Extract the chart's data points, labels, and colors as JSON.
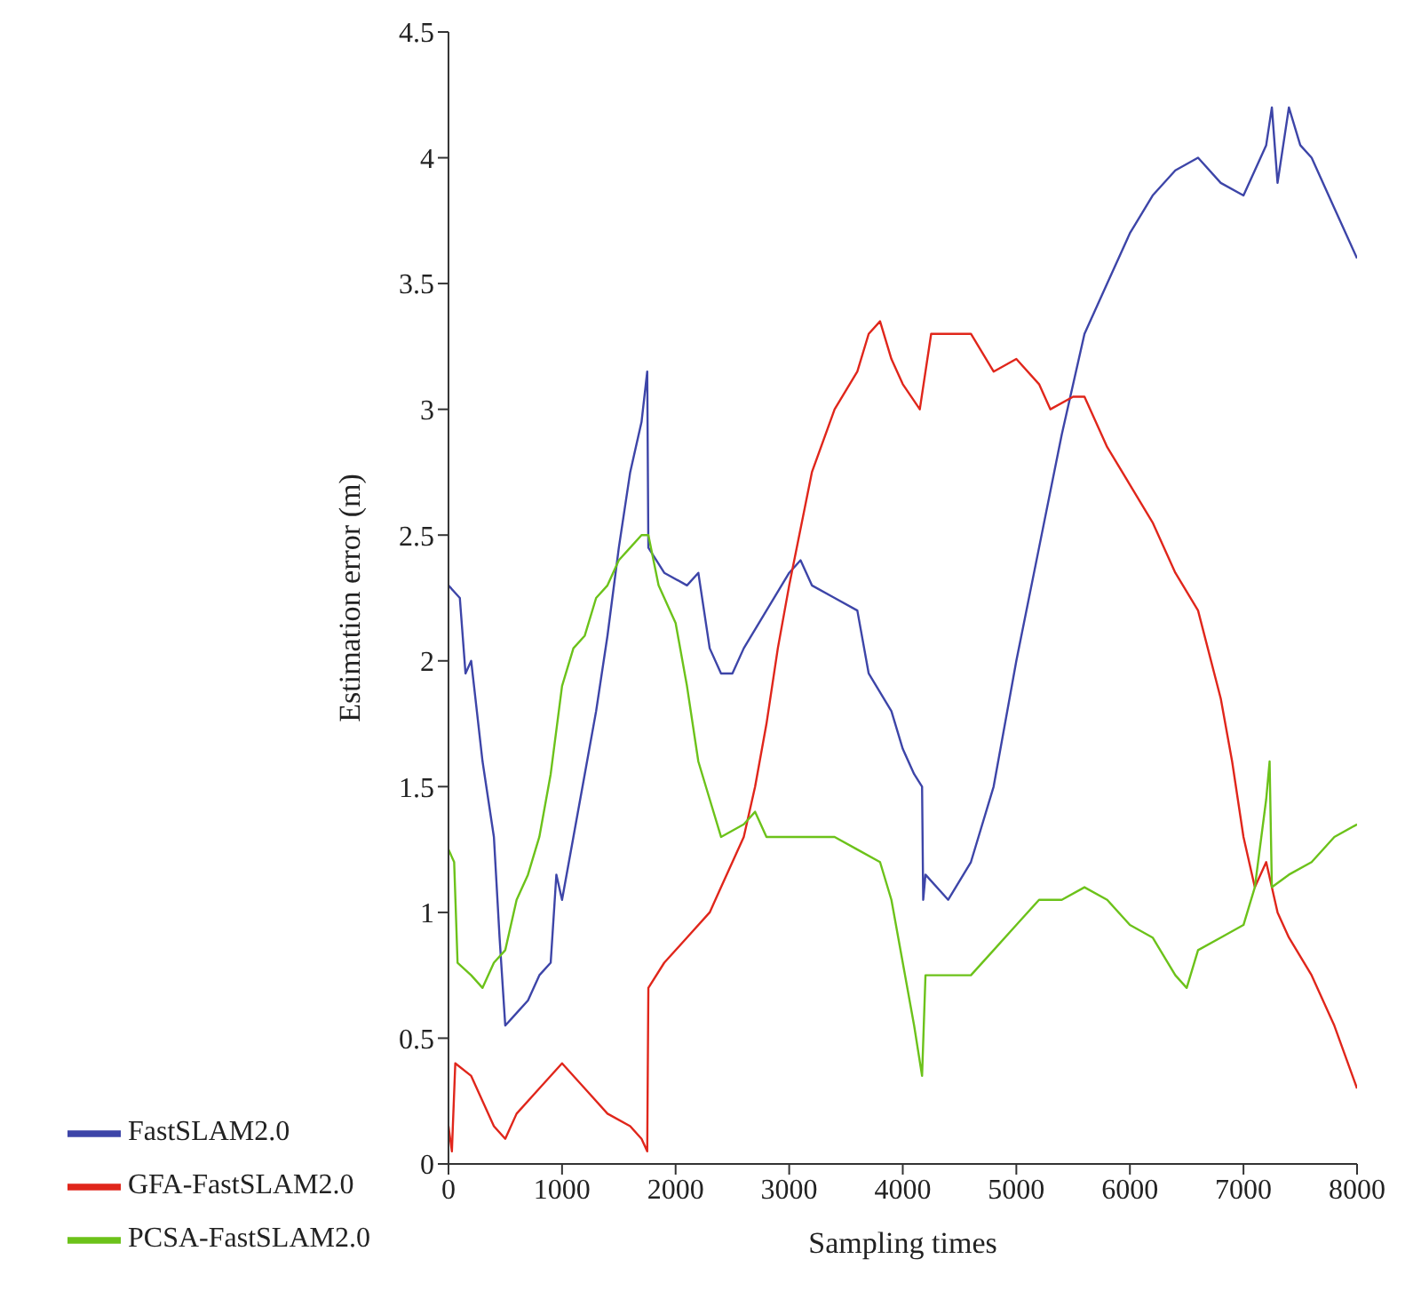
{
  "chart_data": {
    "type": "line",
    "xlabel": "Sampling times",
    "ylabel": "Estimation error (m)",
    "xlim": [
      0,
      8000
    ],
    "xticks": [
      0,
      1000,
      2000,
      3000,
      4000,
      5000,
      6000,
      7000,
      8000
    ],
    "ylim": [
      0,
      4.5
    ],
    "yticks": [
      0,
      0.5,
      1,
      1.5,
      2,
      2.5,
      3,
      3.5,
      4,
      4.5
    ],
    "grid": false,
    "legend": "bottom",
    "marker": "none",
    "line_style": "solid",
    "series": [
      {
        "name": "FastSLAM2.0",
        "color": "#3d45a8",
        "x": [
          0,
          100,
          150,
          200,
          300,
          400,
          450,
          500,
          600,
          700,
          800,
          900,
          950,
          1000,
          1100,
          1200,
          1300,
          1400,
          1500,
          1600,
          1700,
          1750,
          1760,
          1900,
          2100,
          2200,
          2300,
          2400,
          2500,
          2600,
          2800,
          3000,
          3100,
          3200,
          3400,
          3600,
          3700,
          3900,
          4000,
          4100,
          4170,
          4180,
          4200,
          4400,
          4600,
          4800,
          5000,
          5200,
          5400,
          5600,
          5800,
          6000,
          6200,
          6400,
          6600,
          6800,
          7000,
          7200,
          7250,
          7300,
          7400,
          7500,
          7600,
          7800,
          8000
        ],
        "values": [
          2.3,
          2.25,
          1.95,
          2.0,
          1.6,
          1.3,
          0.9,
          0.55,
          0.6,
          0.65,
          0.75,
          0.8,
          1.15,
          1.05,
          1.3,
          1.55,
          1.8,
          2.1,
          2.45,
          2.75,
          2.95,
          3.15,
          2.45,
          2.35,
          2.3,
          2.35,
          2.05,
          1.95,
          1.95,
          2.05,
          2.2,
          2.35,
          2.4,
          2.3,
          2.25,
          2.2,
          1.95,
          1.8,
          1.65,
          1.55,
          1.5,
          1.05,
          1.15,
          1.05,
          1.2,
          1.5,
          2.0,
          2.45,
          2.9,
          3.3,
          3.5,
          3.7,
          3.85,
          3.95,
          4.0,
          3.9,
          3.85,
          4.05,
          4.2,
          3.9,
          4.2,
          4.05,
          4.0,
          3.8,
          3.6
        ]
      },
      {
        "name": "GFA-FastSLAM2.0",
        "color": "#e0261b",
        "x": [
          0,
          30,
          60,
          200,
          300,
          400,
          500,
          600,
          800,
          1000,
          1200,
          1400,
          1600,
          1700,
          1750,
          1760,
          1900,
          2100,
          2300,
          2400,
          2600,
          2700,
          2800,
          2900,
          3000,
          3200,
          3400,
          3600,
          3700,
          3800,
          3900,
          4000,
          4150,
          4250,
          4400,
          4600,
          4800,
          5000,
          5200,
          5300,
          5500,
          5600,
          5800,
          6000,
          6200,
          6400,
          6600,
          6800,
          6900,
          7000,
          7100,
          7200,
          7300,
          7400,
          7600,
          7800,
          8000
        ],
        "values": [
          0.15,
          0.05,
          0.4,
          0.35,
          0.25,
          0.15,
          0.1,
          0.2,
          0.3,
          0.4,
          0.3,
          0.2,
          0.15,
          0.1,
          0.05,
          0.7,
          0.8,
          0.9,
          1.0,
          1.1,
          1.3,
          1.5,
          1.75,
          2.05,
          2.3,
          2.75,
          3.0,
          3.15,
          3.3,
          3.35,
          3.2,
          3.1,
          3.0,
          3.3,
          3.3,
          3.3,
          3.15,
          3.2,
          3.1,
          3.0,
          3.05,
          3.05,
          2.85,
          2.7,
          2.55,
          2.35,
          2.2,
          1.85,
          1.6,
          1.3,
          1.1,
          1.2,
          1.0,
          0.9,
          0.75,
          0.55,
          0.3
        ]
      },
      {
        "name": "PCSA-FastSLAM2.0",
        "color": "#6cc21a",
        "x": [
          0,
          50,
          80,
          200,
          300,
          400,
          500,
          600,
          700,
          800,
          900,
          1000,
          1100,
          1200,
          1300,
          1400,
          1500,
          1600,
          1700,
          1760,
          1850,
          2000,
          2100,
          2200,
          2300,
          2400,
          2600,
          2700,
          2800,
          3000,
          3200,
          3400,
          3600,
          3800,
          3900,
          4000,
          4100,
          4170,
          4200,
          4400,
          4600,
          4800,
          5000,
          5200,
          5400,
          5600,
          5800,
          6000,
          6200,
          6400,
          6500,
          6600,
          6800,
          7000,
          7100,
          7200,
          7230,
          7250,
          7400,
          7600,
          7800,
          8000
        ],
        "values": [
          1.25,
          1.2,
          0.8,
          0.75,
          0.7,
          0.8,
          0.85,
          1.05,
          1.15,
          1.3,
          1.55,
          1.9,
          2.05,
          2.1,
          2.25,
          2.3,
          2.4,
          2.45,
          2.5,
          2.5,
          2.3,
          2.15,
          1.9,
          1.6,
          1.45,
          1.3,
          1.35,
          1.4,
          1.3,
          1.3,
          1.3,
          1.3,
          1.25,
          1.2,
          1.05,
          0.8,
          0.55,
          0.35,
          0.75,
          0.75,
          0.75,
          0.85,
          0.95,
          1.05,
          1.05,
          1.1,
          1.05,
          0.95,
          0.9,
          0.75,
          0.7,
          0.85,
          0.9,
          0.95,
          1.1,
          1.45,
          1.6,
          1.1,
          1.15,
          1.2,
          1.3,
          1.35
        ]
      }
    ]
  }
}
